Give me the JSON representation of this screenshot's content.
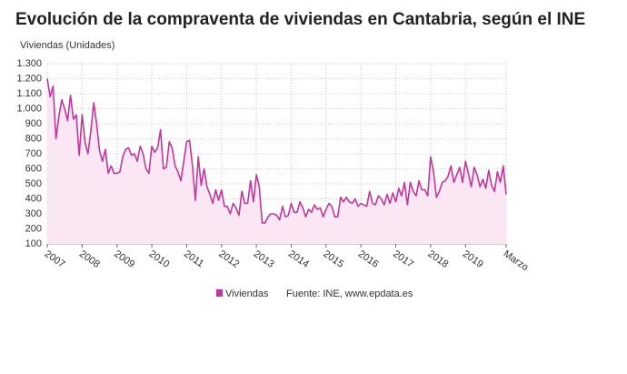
{
  "chart_data": {
    "type": "line",
    "title": "Evolución de la compraventa de viviendas en Cantabria, según el INE",
    "y_label": "Viviendas (Unidades)",
    "source": "Fuente: INE, www.epdata.es",
    "categories": [
      "2007",
      null,
      null,
      null,
      null,
      null,
      null,
      null,
      null,
      null,
      null,
      null,
      "2008",
      null,
      null,
      null,
      null,
      null,
      null,
      null,
      null,
      null,
      null,
      null,
      "2009",
      null,
      null,
      null,
      null,
      null,
      null,
      null,
      null,
      null,
      null,
      null,
      "2010",
      null,
      null,
      null,
      null,
      null,
      null,
      null,
      null,
      null,
      null,
      null,
      "2011",
      null,
      null,
      null,
      null,
      null,
      null,
      null,
      null,
      null,
      null,
      null,
      "2012",
      null,
      null,
      null,
      null,
      null,
      null,
      null,
      null,
      null,
      null,
      null,
      "2013",
      null,
      null,
      null,
      null,
      null,
      null,
      null,
      null,
      null,
      null,
      null,
      "2014",
      null,
      null,
      null,
      null,
      null,
      null,
      null,
      null,
      null,
      null,
      null,
      "2015",
      null,
      null,
      null,
      null,
      null,
      null,
      null,
      null,
      null,
      null,
      null,
      "2016",
      null,
      null,
      null,
      null,
      null,
      null,
      null,
      null,
      null,
      null,
      null,
      "2017",
      null,
      null,
      null,
      null,
      null,
      null,
      null,
      null,
      null,
      null,
      null,
      "2018",
      null,
      null,
      null,
      null,
      null,
      null,
      null,
      null,
      null,
      null,
      null,
      "2019",
      null,
      null,
      null,
      null,
      null,
      null,
      null,
      null,
      null,
      null,
      null,
      null,
      null,
      "Marzo"
    ],
    "series": [
      {
        "name": "Viviendas",
        "color": "#c2379b",
        "fill": "#fbe6f3",
        "values": [
          1200,
          1080,
          1150,
          800,
          950,
          1060,
          1000,
          920,
          1090,
          930,
          960,
          690,
          960,
          780,
          700,
          850,
          1040,
          900,
          720,
          650,
          730,
          570,
          620,
          570,
          570,
          580,
          680,
          730,
          740,
          690,
          700,
          650,
          750,
          700,
          600,
          570,
          750,
          710,
          740,
          860,
          600,
          610,
          780,
          740,
          620,
          580,
          520,
          650,
          780,
          790,
          620,
          390,
          680,
          490,
          600,
          480,
          430,
          370,
          460,
          390,
          460,
          350,
          350,
          300,
          370,
          340,
          290,
          450,
          370,
          370,
          520,
          380,
          560,
          480,
          240,
          240,
          280,
          300,
          300,
          290,
          260,
          350,
          280,
          290,
          370,
          310,
          310,
          380,
          340,
          280,
          330,
          310,
          360,
          330,
          340,
          280,
          330,
          370,
          350,
          280,
          280,
          410,
          380,
          410,
          380,
          370,
          400,
          350,
          370,
          360,
          350,
          450,
          370,
          360,
          420,
          400,
          360,
          430,
          370,
          440,
          380,
          470,
          420,
          510,
          360,
          510,
          450,
          420,
          520,
          460,
          460,
          420,
          680,
          580,
          410,
          450,
          510,
          520,
          550,
          620,
          510,
          560,
          610,
          510,
          650,
          570,
          480,
          610,
          560,
          480,
          530,
          470,
          590,
          490,
          450,
          580,
          510,
          620,
          430
        ]
      }
    ],
    "ylim": [
      100,
      1300
    ],
    "yticks": [
      100,
      200,
      300,
      400,
      500,
      600,
      700,
      800,
      900,
      {
        "value": 1000,
        "label": "1.000"
      },
      {
        "value": 1100,
        "label": "1.100"
      },
      {
        "value": 1200,
        "label": "1.200"
      },
      {
        "value": 1300,
        "label": "1.300"
      }
    ],
    "grid": true
  }
}
